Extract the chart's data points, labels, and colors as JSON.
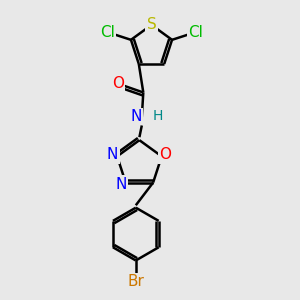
{
  "background_color": "#e8e8e8",
  "bond_color": "#000000",
  "bond_width": 1.8,
  "atom_colors": {
    "S": "#b8b800",
    "Cl": "#00bb00",
    "O": "#ff0000",
    "N": "#0000ff",
    "H": "#008888",
    "Br": "#cc7700"
  },
  "font_size": 11,
  "figsize": [
    3.0,
    3.0
  ],
  "dpi": 100,
  "xlim": [
    0,
    10
  ],
  "ylim": [
    0,
    10
  ]
}
